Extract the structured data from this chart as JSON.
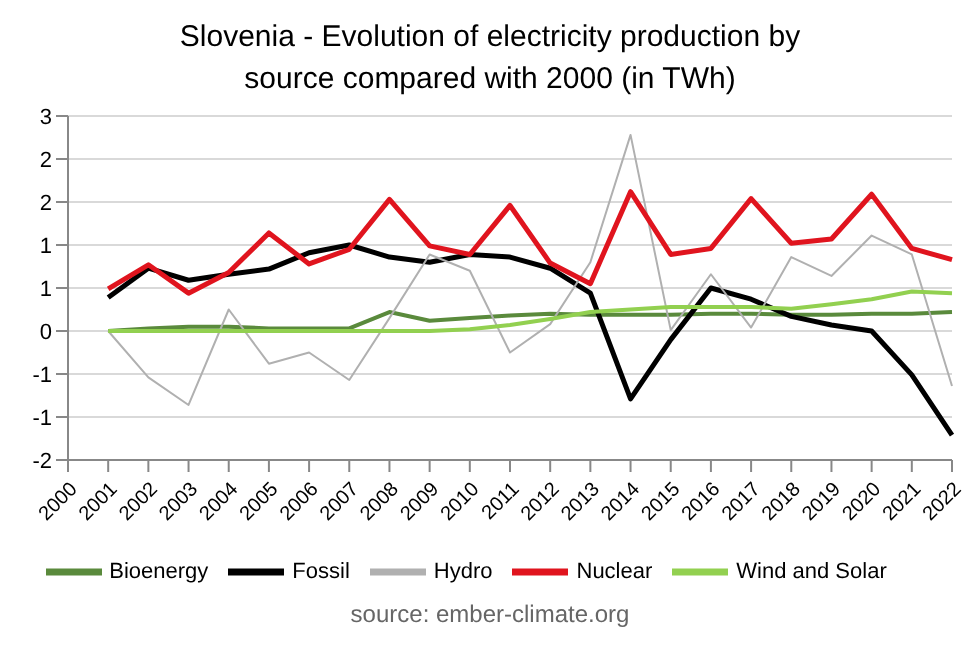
{
  "chart_data": {
    "type": "line",
    "title": "Slovenia - Evolution of electricity production by source compared with 2000 (in TWh)",
    "categories": [
      "2000",
      "2001",
      "2002",
      "2003",
      "2004",
      "2005",
      "2006",
      "2007",
      "2008",
      "2009",
      "2010",
      "2011",
      "2012",
      "2013",
      "2014",
      "2015",
      "2016",
      "2017",
      "2018",
      "2019",
      "2020",
      "2021",
      "2022"
    ],
    "series": [
      {
        "name": "Bioenergy",
        "color": "#5a8a3c",
        "values": [
          null,
          0,
          0.03,
          0.05,
          0.05,
          0.03,
          0.03,
          0.03,
          0.22,
          0.12,
          0.15,
          0.18,
          0.2,
          0.19,
          0.19,
          0.19,
          0.2,
          0.2,
          0.19,
          0.19,
          0.2,
          0.2,
          0.22
        ]
      },
      {
        "name": "Fossil",
        "color": "#000000",
        "values": [
          null,
          0.39,
          0.73,
          0.59,
          0.66,
          0.72,
          0.91,
          1.0,
          0.86,
          0.8,
          0.89,
          0.86,
          0.73,
          0.44,
          -0.79,
          -0.1,
          0.5,
          0.37,
          0.17,
          0.07,
          0.0,
          -0.51,
          -1.21
        ]
      },
      {
        "name": "Hydro",
        "color": "#b0b0b0",
        "values": [
          null,
          0,
          -0.54,
          -0.86,
          0.25,
          -0.38,
          -0.25,
          -0.57,
          0.15,
          0.89,
          0.7,
          -0.25,
          0.08,
          0.8,
          2.28,
          0.01,
          0.66,
          0.04,
          0.86,
          0.64,
          1.11,
          0.89,
          -0.64
        ]
      },
      {
        "name": "Nuclear",
        "color": "#e0141e",
        "values": [
          null,
          0.49,
          0.77,
          0.44,
          0.68,
          1.14,
          0.78,
          0.95,
          1.53,
          0.99,
          0.89,
          1.46,
          0.79,
          0.55,
          1.62,
          0.89,
          0.96,
          1.54,
          1.02,
          1.07,
          1.59,
          0.96,
          0.83
        ]
      },
      {
        "name": "Wind and Solar",
        "color": "#92d050",
        "values": [
          null,
          0,
          0,
          0,
          0,
          0,
          0,
          0,
          0,
          0,
          0.02,
          0.07,
          0.14,
          0.22,
          0.25,
          0.28,
          0.28,
          0.28,
          0.26,
          0.31,
          0.37,
          0.46,
          0.44
        ]
      }
    ],
    "ylim": [
      -1.5,
      2.5
    ],
    "yticks": [
      {
        "value": -1.5,
        "label": "-2"
      },
      {
        "value": -1,
        "label": "-1"
      },
      {
        "value": -0.5,
        "label": "-1"
      },
      0,
      {
        "value": 0.5,
        "label": "1"
      },
      1,
      {
        "value": 1.5,
        "label": "2"
      },
      2,
      {
        "value": 2.5,
        "label": "3"
      }
    ],
    "grid": "y",
    "legend": "bottom",
    "marker": "none",
    "line_style": "solid",
    "annotations": [
      "source: ember-climate.org"
    ]
  }
}
